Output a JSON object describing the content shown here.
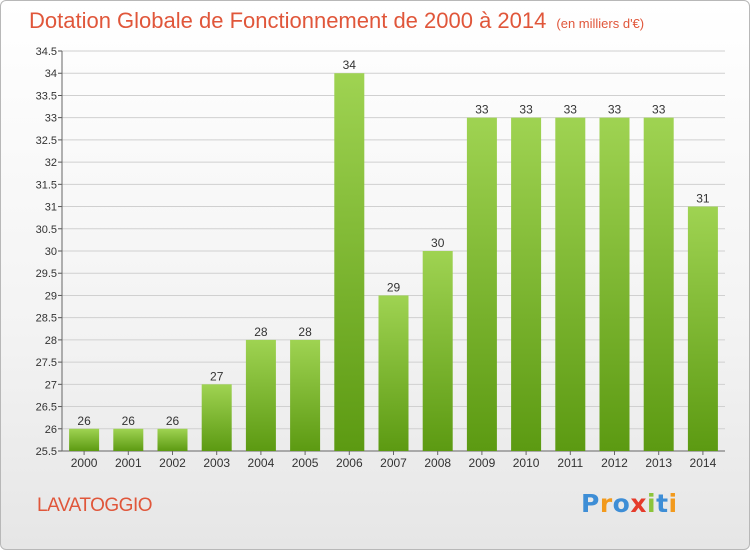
{
  "header": {
    "title": "Dotation Globale de Fonctionnement de 2000 à 2014",
    "subtitle": "(en milliers d'€)"
  },
  "footer": {
    "place": "LAVATOGGIO",
    "logo": "Proxiti"
  },
  "colors": {
    "title": "#e0563a",
    "bar_top": "#9fd352",
    "bar_bottom": "#5c9a12",
    "grid": "#d0d0d0",
    "logo_letters": [
      "#3e8ed6",
      "#f29a1d",
      "#3e8ed6",
      "#e53b2b",
      "#8cc43a",
      "#3e8ed6",
      "#f29a1d"
    ]
  },
  "chart_data": {
    "type": "bar",
    "categories": [
      "2000",
      "2001",
      "2002",
      "2003",
      "2004",
      "2005",
      "2006",
      "2007",
      "2008",
      "2009",
      "2010",
      "2011",
      "2012",
      "2013",
      "2014"
    ],
    "values": [
      26,
      26,
      26,
      27,
      28,
      28,
      34,
      29,
      30,
      33,
      33,
      33,
      33,
      33,
      31
    ],
    "title": "Dotation Globale de Fonctionnement de 2000 à 2014",
    "xlabel": "",
    "ylabel": "",
    "ylim": [
      25.5,
      34.5
    ],
    "yticks": [
      25.5,
      26,
      26.5,
      27,
      27.5,
      28,
      28.5,
      29,
      29.5,
      30,
      30.5,
      31,
      31.5,
      32,
      32.5,
      33,
      33.5,
      34,
      34.5
    ],
    "grid": true,
    "legend": "none"
  }
}
